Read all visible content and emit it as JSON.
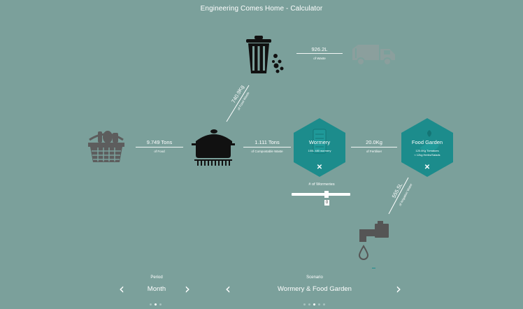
{
  "title": "Engineering Comes Home - Calculator",
  "flows": {
    "food": {
      "value": "9.749 Tons",
      "label": "of Food"
    },
    "compostable": {
      "value": "1.111 Tons",
      "label": "of Compostable Waste"
    },
    "waste_trash": {
      "value": "740.9Kg",
      "label": "of Food Waste"
    },
    "trash_truck": {
      "value": "926.2L",
      "label": "of Waste"
    },
    "fertiliser": {
      "value": "20.0Kg",
      "label": "of Fertiliser"
    },
    "irrigation": {
      "value": "555.5L",
      "label": "of Irrigation Water"
    }
  },
  "wormery": {
    "title": "Wormery",
    "detail": "100L 480 wormery",
    "close": "✕"
  },
  "food_garden": {
    "title": "Food Garden",
    "detail_1": "120.0Kg Tomatoes",
    "detail_2": "≈ 12kg Herbs/Salads",
    "close": "✕"
  },
  "wormeries_control": {
    "label": "# of Wormeries",
    "value": "0"
  },
  "period": {
    "label": "Period",
    "value": "Month",
    "prev": "‹",
    "next": "›"
  },
  "scenario": {
    "label": "Scenario",
    "value": "Wormery & Food Garden",
    "prev": "‹",
    "next": "›"
  },
  "icons": {
    "trash": "trash-bin-icon",
    "truck": "garbage-truck-icon",
    "basket": "food-basket-icon",
    "pot": "cooking-pot-icon",
    "tap": "water-tap-icon",
    "drop": "water-drop-icon"
  },
  "colors": {
    "background": "#7ba09b",
    "hex": "#1c8c8c",
    "icon_dark": "#111111",
    "icon_grey": "#5d5d5d",
    "icon_light": "#8b9f9d"
  }
}
